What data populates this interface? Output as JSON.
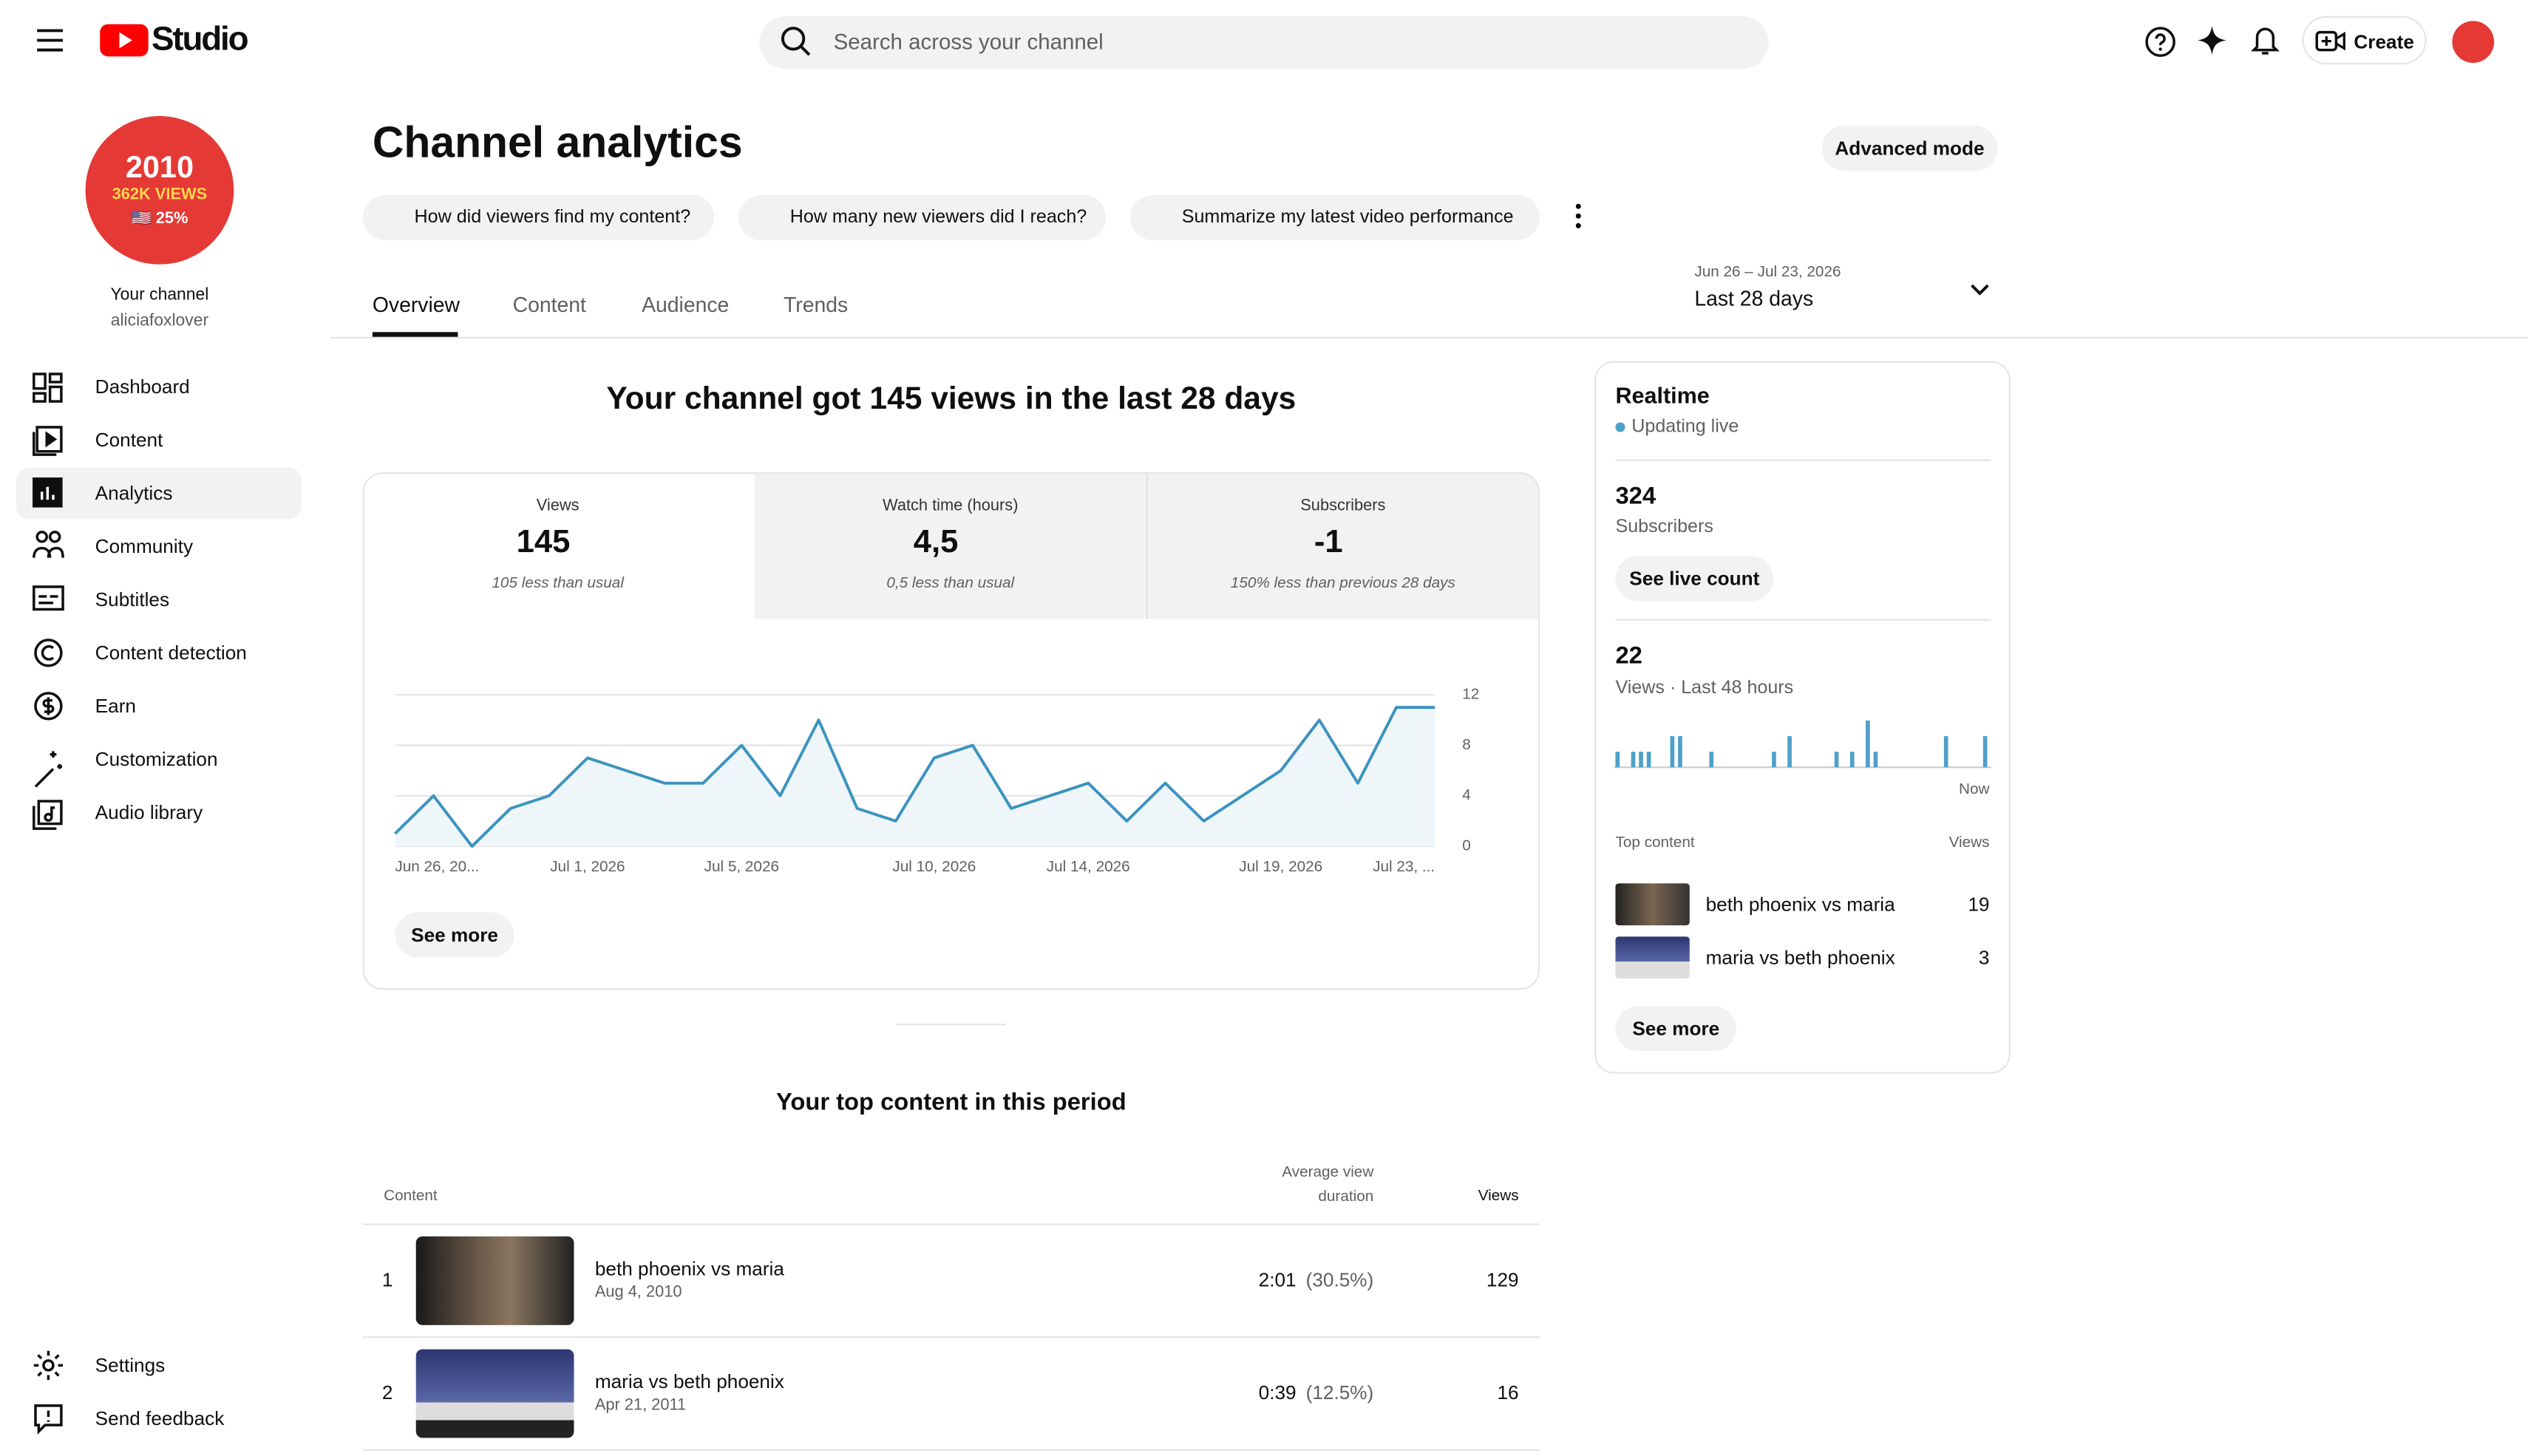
{
  "header": {
    "logo": "Studio",
    "search_placeholder": "Search across your channel",
    "create": "Create"
  },
  "sidebar": {
    "avatar_lines": [
      "2010",
      "362K VIEWS",
      "🇺🇸 25%"
    ],
    "channel_label": "Your channel",
    "channel_handle": "aliciafoxlover",
    "nav": [
      "Dashboard",
      "Content",
      "Analytics",
      "Community",
      "Subtitles",
      "Content detection",
      "Earn",
      "Customization",
      "Audio library"
    ],
    "bottom": [
      "Settings",
      "Send feedback"
    ]
  },
  "page": {
    "title": "Channel analytics",
    "advanced": "Advanced mode",
    "chips": [
      "How did viewers find my content?",
      "How many new viewers did I reach?",
      "Summarize my latest video performance"
    ],
    "tabs": [
      "Overview",
      "Content",
      "Audience",
      "Trends"
    ],
    "date_range": "Jun 26 – Jul 23, 2026",
    "period": "Last 28 days"
  },
  "summary": {
    "headline": "Your channel got 145 views in the last 28 days",
    "metrics": [
      {
        "label": "Views",
        "value": 145,
        "note": "105 less than usual"
      },
      {
        "label": "Watch time (hours)",
        "value": "4,5",
        "note": "0,5 less than usual"
      },
      {
        "label": "Subscribers",
        "value": -1,
        "note": "150% less than previous 28 days"
      }
    ],
    "see_more": "See more"
  },
  "chart_data": [
    {
      "type": "line",
      "color": "#3b93bf",
      "categories": [
        "Jun 26, 20...",
        null,
        null,
        null,
        null,
        "Jul 1, 2026",
        null,
        null,
        null,
        "Jul 5, 2026",
        null,
        null,
        null,
        null,
        "Jul 10, 2026",
        null,
        null,
        null,
        "Jul 14, 2026",
        null,
        null,
        null,
        null,
        "Jul 19, 2026",
        null,
        null,
        null,
        "Jul 23, ..."
      ],
      "values": [
        1,
        4,
        0,
        3,
        4,
        7,
        6,
        5,
        5,
        8,
        4,
        10,
        3,
        2,
        7,
        8,
        3,
        4,
        5,
        2,
        5,
        2,
        4,
        6,
        10,
        5,
        11,
        11
      ],
      "ylim": [
        0,
        12
      ],
      "yticks": [
        0,
        4,
        8,
        12
      ],
      "grid": true
    },
    {
      "type": "bar",
      "color": "#4fa0c8",
      "values": [
        1,
        0,
        1,
        1,
        1,
        0,
        0,
        2,
        2,
        0,
        0,
        0,
        1,
        0,
        0,
        0,
        0,
        0,
        0,
        0,
        1,
        0,
        2,
        0,
        0,
        0,
        0,
        0,
        1,
        0,
        1,
        0,
        3,
        1,
        0,
        0,
        0,
        0,
        0,
        0,
        0,
        0,
        2,
        0,
        0,
        0,
        0,
        2
      ]
    }
  ],
  "top_content": {
    "title": "Your top content in this period",
    "headers": {
      "content": "Content",
      "duration": "Average view duration",
      "views": "Views"
    },
    "rows": [
      {
        "rank": 1,
        "title": "beth phoenix vs maria",
        "date": "Aug 4, 2010",
        "duration": "2:01",
        "percent": "(30.5%)",
        "views": 129
      },
      {
        "rank": 2,
        "title": "maria vs beth phoenix",
        "date": "Apr 21, 2011",
        "duration": "0:39",
        "percent": "(12.5%)",
        "views": 16
      }
    ]
  },
  "realtime": {
    "title": "Realtime",
    "status": "Updating live",
    "subscribers": 324,
    "subscribers_label": "Subscribers",
    "see_live": "See live count",
    "views": 22,
    "views_label": "Views · Last 48 hours",
    "now_label": "Now",
    "top_label": "Top content",
    "views_header": "Views",
    "items": [
      {
        "title": "beth phoenix vs maria",
        "views": 19
      },
      {
        "title": "maria vs beth phoenix",
        "views": 3
      }
    ],
    "see_more": "See more"
  }
}
